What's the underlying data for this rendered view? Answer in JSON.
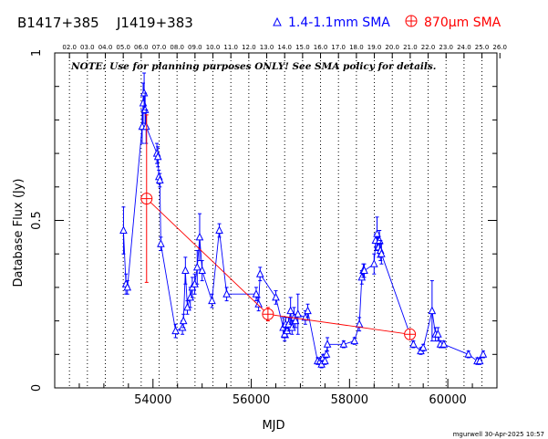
{
  "header": {
    "source_name": "B1417+385",
    "alt_name": "J1419+383"
  },
  "note": "NOTE: Use for planning purposes ONLY!  See SMA policy for details.",
  "footer": "mgurwell 30-Apr-2025 10:57",
  "colors": {
    "blue": "#0000ff",
    "red": "#ff0000",
    "axis": "#000000"
  },
  "chart_data": {
    "type": "scatter",
    "xlabel": "MJD",
    "ylabel": "Database Flux (Jy)",
    "xlim": [
      52000,
      61000
    ],
    "ylim": [
      0,
      1.0
    ],
    "x_ticks": [
      54000,
      56000,
      58000,
      60000
    ],
    "y_ticks": [
      0,
      0.5,
      1
    ],
    "y_tick_labels": [
      "0",
      "0.5",
      "1"
    ],
    "top_axis_labels": [
      "02.0",
      "03.0",
      "04.0",
      "05.0",
      "06.0",
      "07.0",
      "08.0",
      "09.0",
      "10.0",
      "11.0",
      "12.0",
      "13.0",
      "14.0",
      "15.0",
      "16.0",
      "17.0",
      "18.0",
      "19.0",
      "20.0",
      "21.0",
      "22.0",
      "23.0",
      "24.0",
      "25.0",
      "26.0"
    ],
    "top_axis_mjd": [
      52300,
      52665,
      53030,
      53395,
      53760,
      54125,
      54490,
      54855,
      55220,
      55585,
      55950,
      56315,
      56680,
      57045,
      57410,
      57775,
      58140,
      58505,
      58870,
      59235,
      59600,
      59965,
      60330,
      60695,
      61060
    ],
    "grid": "vertical dotted at top-axis ticks",
    "legend_position": "top-right",
    "series": [
      {
        "name": "1.4-1.1mm SMA",
        "marker": "triangle",
        "color": "#0000ff",
        "connected": true,
        "points": [
          {
            "x": 53400,
            "y": 0.47,
            "err": 0.07
          },
          {
            "x": 53450,
            "y": 0.31,
            "err": 0.03
          },
          {
            "x": 53480,
            "y": 0.3,
            "err": 0.02
          },
          {
            "x": 53780,
            "y": 0.78,
            "err": 0.05
          },
          {
            "x": 53800,
            "y": 0.85,
            "err": 0.06
          },
          {
            "x": 53820,
            "y": 0.88,
            "err": 0.06
          },
          {
            "x": 53840,
            "y": 0.83,
            "err": 0.05
          },
          {
            "x": 53860,
            "y": 0.78,
            "err": 0.05
          },
          {
            "x": 54080,
            "y": 0.7,
            "err": 0.03
          },
          {
            "x": 54100,
            "y": 0.69,
            "err": 0.03
          },
          {
            "x": 54120,
            "y": 0.63,
            "err": 0.02
          },
          {
            "x": 54140,
            "y": 0.62,
            "err": 0.02
          },
          {
            "x": 54160,
            "y": 0.43,
            "err": 0.02
          },
          {
            "x": 54460,
            "y": 0.17,
            "err": 0.02
          },
          {
            "x": 54600,
            "y": 0.18,
            "err": 0.02
          },
          {
            "x": 54620,
            "y": 0.2,
            "err": 0.02
          },
          {
            "x": 54660,
            "y": 0.35,
            "err": 0.04
          },
          {
            "x": 54700,
            "y": 0.24,
            "err": 0.02
          },
          {
            "x": 54760,
            "y": 0.27,
            "err": 0.03
          },
          {
            "x": 54800,
            "y": 0.3,
            "err": 0.03
          },
          {
            "x": 54850,
            "y": 0.31,
            "err": 0.03
          },
          {
            "x": 54900,
            "y": 0.36,
            "err": 0.05
          },
          {
            "x": 54950,
            "y": 0.45,
            "err": 0.07
          },
          {
            "x": 55000,
            "y": 0.35,
            "err": 0.03
          },
          {
            "x": 55200,
            "y": 0.26,
            "err": 0.02
          },
          {
            "x": 55350,
            "y": 0.47,
            "err": 0.02
          },
          {
            "x": 55500,
            "y": 0.28,
            "err": 0.02
          },
          {
            "x": 56100,
            "y": 0.28,
            "err": 0.02
          },
          {
            "x": 56150,
            "y": 0.25,
            "err": 0.02
          },
          {
            "x": 56180,
            "y": 0.34,
            "err": 0.02
          },
          {
            "x": 56500,
            "y": 0.27,
            "err": 0.02
          },
          {
            "x": 56650,
            "y": 0.18,
            "err": 0.03
          },
          {
            "x": 56680,
            "y": 0.16,
            "err": 0.02
          },
          {
            "x": 56700,
            "y": 0.19,
            "err": 0.02
          },
          {
            "x": 56730,
            "y": 0.17,
            "err": 0.02
          },
          {
            "x": 56760,
            "y": 0.19,
            "err": 0.02
          },
          {
            "x": 56800,
            "y": 0.23,
            "err": 0.04
          },
          {
            "x": 56830,
            "y": 0.18,
            "err": 0.02
          },
          {
            "x": 56870,
            "y": 0.21,
            "err": 0.03
          },
          {
            "x": 56900,
            "y": 0.2,
            "err": 0.02
          },
          {
            "x": 56950,
            "y": 0.22,
            "err": 0.06
          },
          {
            "x": 57100,
            "y": 0.21,
            "err": 0.02
          },
          {
            "x": 57150,
            "y": 0.23,
            "err": 0.02
          },
          {
            "x": 57350,
            "y": 0.08,
            "err": 0.01
          },
          {
            "x": 57400,
            "y": 0.08,
            "err": 0.01
          },
          {
            "x": 57430,
            "y": 0.07,
            "err": 0.01
          },
          {
            "x": 57460,
            "y": 0.09,
            "err": 0.01
          },
          {
            "x": 57500,
            "y": 0.08,
            "err": 0.01
          },
          {
            "x": 57530,
            "y": 0.1,
            "err": 0.01
          },
          {
            "x": 57550,
            "y": 0.13,
            "err": 0.02
          },
          {
            "x": 57880,
            "y": 0.13,
            "err": 0.01
          },
          {
            "x": 58100,
            "y": 0.14,
            "err": 0.01
          },
          {
            "x": 58200,
            "y": 0.19,
            "err": 0.02
          },
          {
            "x": 58250,
            "y": 0.33,
            "err": 0.02
          },
          {
            "x": 58280,
            "y": 0.35,
            "err": 0.02
          },
          {
            "x": 58300,
            "y": 0.35,
            "err": 0.02
          },
          {
            "x": 58500,
            "y": 0.37,
            "err": 0.03
          },
          {
            "x": 58530,
            "y": 0.44,
            "err": 0.02
          },
          {
            "x": 58560,
            "y": 0.46,
            "err": 0.05
          },
          {
            "x": 58590,
            "y": 0.42,
            "err": 0.03
          },
          {
            "x": 58610,
            "y": 0.44,
            "err": 0.03
          },
          {
            "x": 58630,
            "y": 0.41,
            "err": 0.03
          },
          {
            "x": 58650,
            "y": 0.4,
            "err": 0.03
          },
          {
            "x": 59300,
            "y": 0.13,
            "err": 0.01
          },
          {
            "x": 59450,
            "y": 0.11,
            "err": 0.01
          },
          {
            "x": 59500,
            "y": 0.12,
            "err": 0.01
          },
          {
            "x": 59680,
            "y": 0.23,
            "err": 0.09
          },
          {
            "x": 59750,
            "y": 0.16,
            "err": 0.02
          },
          {
            "x": 59800,
            "y": 0.16,
            "err": 0.02
          },
          {
            "x": 59850,
            "y": 0.13,
            "err": 0.01
          },
          {
            "x": 59920,
            "y": 0.13,
            "err": 0.01
          },
          {
            "x": 60420,
            "y": 0.1,
            "err": 0.01
          },
          {
            "x": 60600,
            "y": 0.08,
            "err": 0.01
          },
          {
            "x": 60650,
            "y": 0.08,
            "err": 0.01
          },
          {
            "x": 60720,
            "y": 0.1,
            "err": 0.01
          }
        ]
      },
      {
        "name": "870μm SMA",
        "marker": "circle-plus",
        "color": "#ff0000",
        "connected": true,
        "points": [
          {
            "x": 53870,
            "y": 0.565,
            "err": 0.25
          },
          {
            "x": 56340,
            "y": 0.22,
            "err": 0.02
          },
          {
            "x": 59230,
            "y": 0.16,
            "err": 0.01
          }
        ]
      }
    ]
  }
}
